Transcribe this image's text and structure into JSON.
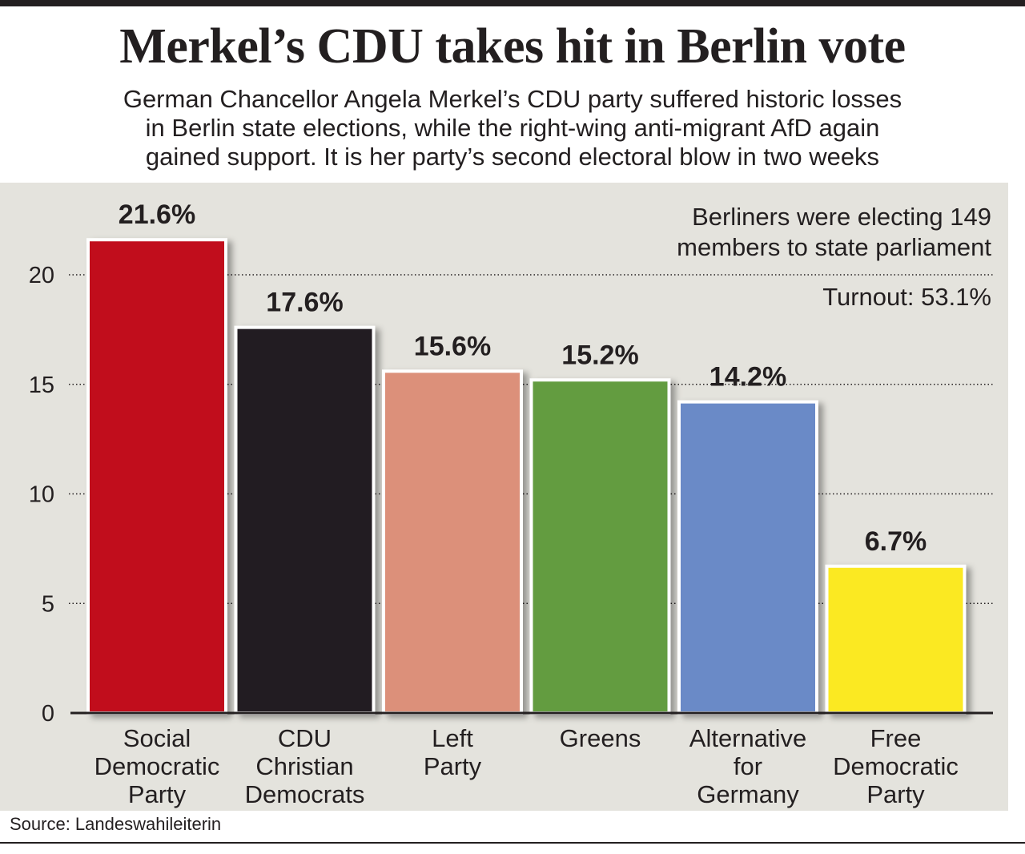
{
  "header": {
    "title": "Merkel’s CDU takes hit in Berlin vote",
    "subtitle_lines": [
      "German Chancellor Angela Merkel’s CDU party suffered historic losses",
      "in Berlin state elections, while the right-wing anti-migrant AfD again",
      "gained support. It is her party’s second electoral blow in two weeks"
    ]
  },
  "notes": {
    "line1": "Berliners were electing 149",
    "line2": "members to state parliament",
    "turnout": "Turnout: 53.1%"
  },
  "footer": {
    "source": "Source: Landeswahileiterin"
  },
  "chart_data": {
    "type": "bar",
    "title": "Merkel’s CDU takes hit in Berlin vote",
    "xlabel": "",
    "ylabel": "",
    "ylim": [
      0,
      23
    ],
    "yticks": [
      0,
      5,
      10,
      15,
      20
    ],
    "grid": "dotted horizontal",
    "categories": [
      [
        "Social",
        "Democratic",
        "Party"
      ],
      [
        "CDU",
        "Christian",
        "Democrats"
      ],
      [
        "Left",
        "Party"
      ],
      [
        "Greens"
      ],
      [
        "Alternative",
        "for",
        "Germany"
      ],
      [
        "Free",
        "Democratic",
        "Party"
      ]
    ],
    "values": [
      21.6,
      17.6,
      15.6,
      15.2,
      14.2,
      6.7
    ],
    "labels": [
      "21.6%",
      "17.6%",
      "15.6%",
      "15.2%",
      "14.2%",
      "6.7%"
    ],
    "colors": [
      "#c10e1c",
      "#231f20",
      "#dc907a",
      "#639c3f",
      "#6a8ac7",
      "#fbe923"
    ]
  }
}
